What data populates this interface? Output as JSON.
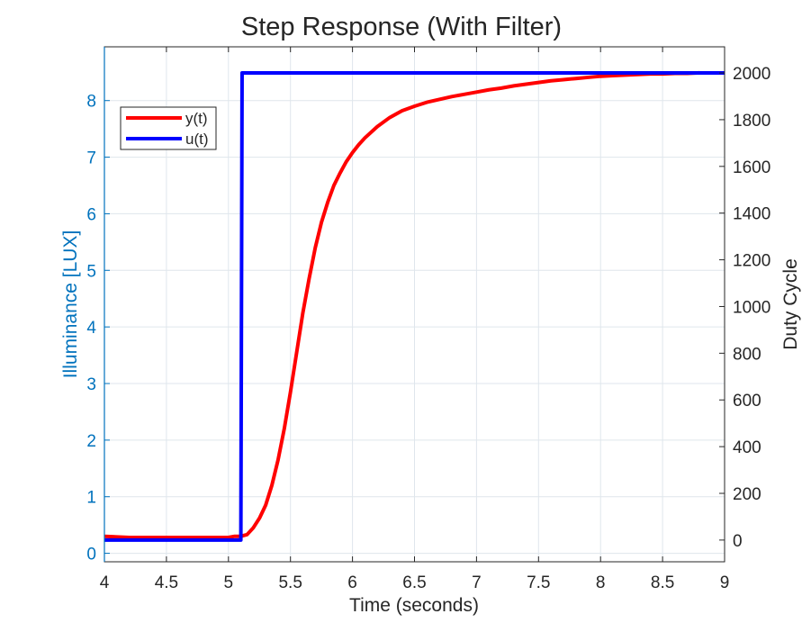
{
  "chart_data": {
    "type": "line",
    "title": "Step Response (With Filter)",
    "xlabel": "Time (seconds)",
    "ylabel_left": "Illuminance [LUX]",
    "ylabel_right": "Duty Cycle",
    "xlim": [
      4,
      9
    ],
    "ylim_left": [
      -0.15,
      8.95
    ],
    "ylim_right": [
      -93,
      2112
    ],
    "x_ticks": [
      4,
      4.5,
      5,
      5.5,
      6,
      6.5,
      7,
      7.5,
      8,
      8.5,
      9
    ],
    "x_tick_labels": [
      "4",
      "4.5",
      "5",
      "5.5",
      "6",
      "6.5",
      "7",
      "7.5",
      "8",
      "8.5",
      "9"
    ],
    "y_left_ticks": [
      0,
      1,
      2,
      3,
      4,
      5,
      6,
      7,
      8
    ],
    "y_left_tick_labels": [
      "0",
      "1",
      "2",
      "3",
      "4",
      "5",
      "6",
      "7",
      "8"
    ],
    "y_right_ticks": [
      0,
      200,
      400,
      600,
      800,
      1000,
      1200,
      1400,
      1600,
      1800,
      2000
    ],
    "y_right_tick_labels": [
      "0",
      "200",
      "400",
      "600",
      "800",
      "1000",
      "1200",
      "1400",
      "1600",
      "1800",
      "2000"
    ],
    "grid": true,
    "legend_position": "top-left",
    "colors": {
      "left_axis": "#0072bd",
      "y": "#ff0000",
      "u": "#0000ff",
      "grid": "#dfe6ec"
    },
    "series": [
      {
        "name": "y(t)",
        "axis": "left",
        "color": "#ff0000",
        "x": [
          4.0,
          4.2,
          4.5,
          4.8,
          5.0,
          5.05,
          5.1,
          5.15,
          5.2,
          5.25,
          5.3,
          5.35,
          5.4,
          5.45,
          5.5,
          5.55,
          5.6,
          5.65,
          5.7,
          5.75,
          5.8,
          5.85,
          5.9,
          5.95,
          6.0,
          6.05,
          6.1,
          6.2,
          6.3,
          6.4,
          6.5,
          6.6,
          6.7,
          6.8,
          6.9,
          7.0,
          7.1,
          7.2,
          7.3,
          7.4,
          7.5,
          7.6,
          7.7,
          7.8,
          7.9,
          8.0,
          8.1,
          8.2,
          8.3,
          8.4,
          8.5,
          8.6,
          8.7,
          8.8
        ],
        "y": [
          0.3,
          0.28,
          0.28,
          0.28,
          0.28,
          0.3,
          0.3,
          0.33,
          0.45,
          0.62,
          0.85,
          1.2,
          1.65,
          2.2,
          2.85,
          3.55,
          4.25,
          4.85,
          5.4,
          5.85,
          6.2,
          6.5,
          6.72,
          6.92,
          7.08,
          7.22,
          7.34,
          7.54,
          7.7,
          7.82,
          7.9,
          7.97,
          8.02,
          8.07,
          8.11,
          8.15,
          8.19,
          8.22,
          8.26,
          8.29,
          8.32,
          8.35,
          8.37,
          8.39,
          8.41,
          8.43,
          8.44,
          8.45,
          8.46,
          8.47,
          8.47,
          8.48,
          8.48,
          8.49
        ]
      },
      {
        "name": "u(t)",
        "axis": "right",
        "color": "#0000ff",
        "x": [
          4.0,
          5.1,
          5.11,
          9.0
        ],
        "y": [
          0,
          0,
          2000,
          2000
        ]
      }
    ]
  }
}
